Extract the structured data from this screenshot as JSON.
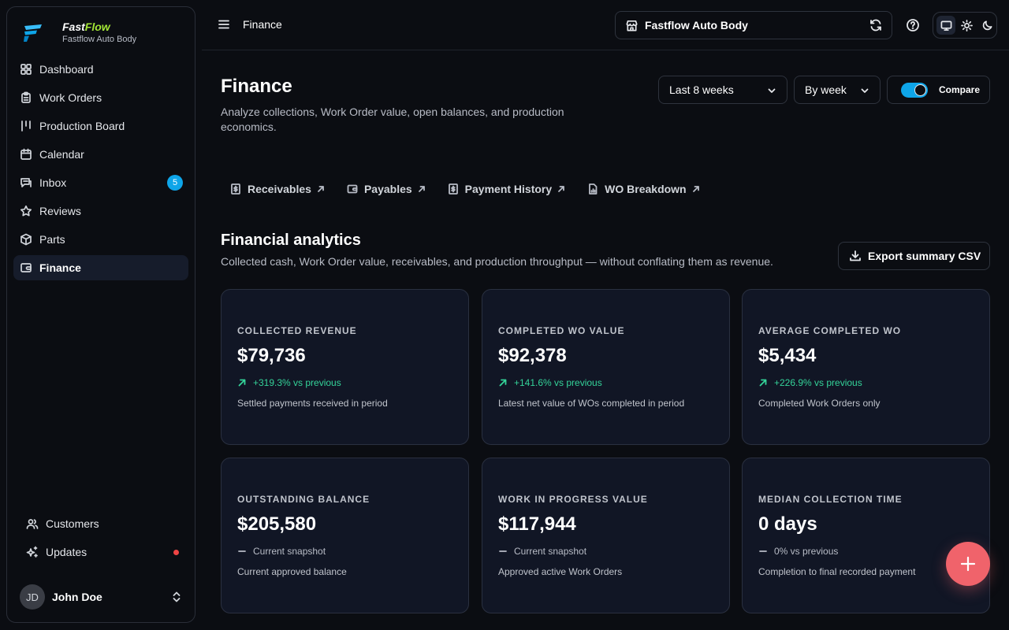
{
  "brand": {
    "name_part1": "Fast",
    "name_part2": "Flow",
    "subtitle": "Fastflow Auto Body"
  },
  "sidebar": {
    "items": [
      {
        "label": "Dashboard",
        "icon": "grid-icon"
      },
      {
        "label": "Work Orders",
        "icon": "clipboard-icon"
      },
      {
        "label": "Production Board",
        "icon": "kanban-icon"
      },
      {
        "label": "Calendar",
        "icon": "calendar-icon"
      },
      {
        "label": "Inbox",
        "icon": "inbox-icon",
        "badge": "5"
      },
      {
        "label": "Reviews",
        "icon": "star-icon"
      },
      {
        "label": "Parts",
        "icon": "box-icon"
      },
      {
        "label": "Finance",
        "icon": "wallet-icon",
        "active": true
      }
    ],
    "bottom_items": [
      {
        "label": "Customers",
        "icon": "users-icon"
      },
      {
        "label": "Updates",
        "icon": "sparkles-icon"
      }
    ],
    "user": {
      "initials": "JD",
      "name": "John Doe"
    }
  },
  "topbar": {
    "breadcrumb": "Finance",
    "shop_name": "Fastflow Auto Body"
  },
  "header": {
    "title": "Finance",
    "description": "Analyze collections, Work Order value, open balances, and production economics."
  },
  "filters": {
    "range": "Last 8 weeks",
    "grouping": "By week",
    "compare_label": "Compare",
    "compare_on": true
  },
  "quick_links": [
    {
      "label": "Receivables"
    },
    {
      "label": "Payables"
    },
    {
      "label": "Payment History"
    },
    {
      "label": "WO Breakdown"
    }
  ],
  "analytics": {
    "title": "Financial analytics",
    "description": "Collected cash, Work Order value, receivables, and production throughput — without conflating them as revenue.",
    "export_label": "Export summary CSV",
    "cards": [
      {
        "label": "COLLECTED REVENUE",
        "value": "$79,736",
        "trend": "+319.3% vs previous",
        "trend_type": "up",
        "note": "Settled payments received in period"
      },
      {
        "label": "COMPLETED WO VALUE",
        "value": "$92,378",
        "trend": "+141.6% vs previous",
        "trend_type": "up",
        "note": "Latest net value of WOs completed in period"
      },
      {
        "label": "AVERAGE COMPLETED WO",
        "value": "$5,434",
        "trend": "+226.9% vs previous",
        "trend_type": "up",
        "note": "Completed Work Orders only"
      },
      {
        "label": "OUTSTANDING BALANCE",
        "value": "$205,580",
        "trend": "Current snapshot",
        "trend_type": "flat",
        "note": "Current approved balance"
      },
      {
        "label": "WORK IN PROGRESS VALUE",
        "value": "$117,944",
        "trend": "Current snapshot",
        "trend_type": "flat",
        "note": "Approved active Work Orders"
      },
      {
        "label": "MEDIAN COLLECTION TIME",
        "value": "0 days",
        "trend": "0% vs previous",
        "trend_type": "flat",
        "note": "Completion to final recorded payment"
      }
    ]
  },
  "colors": {
    "accent": "#0ea5e9",
    "positive": "#34d399",
    "fab": "#f0636b",
    "brand_green": "#a3e635"
  }
}
